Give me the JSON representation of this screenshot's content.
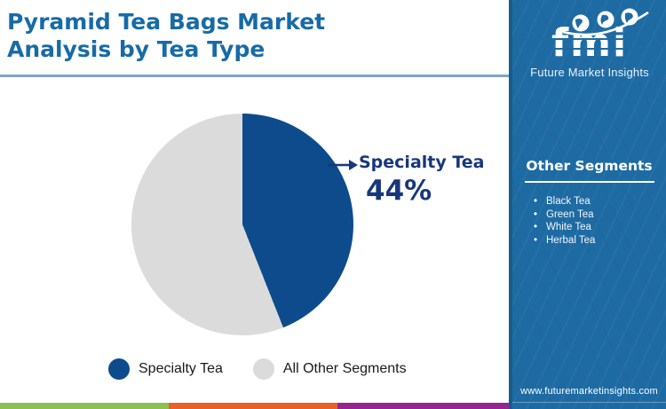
{
  "page": {
    "title_line1": "Pyramid Tea Bags Market",
    "title_line2": "Analysis by Tea Type"
  },
  "brand": {
    "logo_text": "fmi",
    "logo_subtext": "Future Market Insights",
    "website": "www.futuremarketinsights.com"
  },
  "sidebar": {
    "heading": "Other Segments",
    "items": [
      "Black Tea",
      "Green Tea",
      "White Tea",
      "Herbal Tea"
    ]
  },
  "chart_data": {
    "type": "pie",
    "title": "Pyramid Tea Bags Market Analysis by Tea Type",
    "slices": [
      {
        "label": "Specialty Tea",
        "value": 44,
        "color": "#0e4b8c"
      },
      {
        "label": "All Other Segments",
        "value": 56,
        "color": "#dbdbdb"
      }
    ],
    "annotation": {
      "label": "Specialty Tea",
      "value_text": "44%"
    },
    "legend_position": "bottom",
    "start_angle_deg": 0,
    "direction": "clockwise"
  },
  "colors": {
    "title_blue": "#176ba6",
    "sidebar_blue": "#1e6ba4",
    "annotation_navy": "#17377d",
    "divider_blue": "#7fa3c6",
    "footer_green": "#8dc052",
    "footer_orange": "#e7622b",
    "footer_purple": "#93278f"
  }
}
